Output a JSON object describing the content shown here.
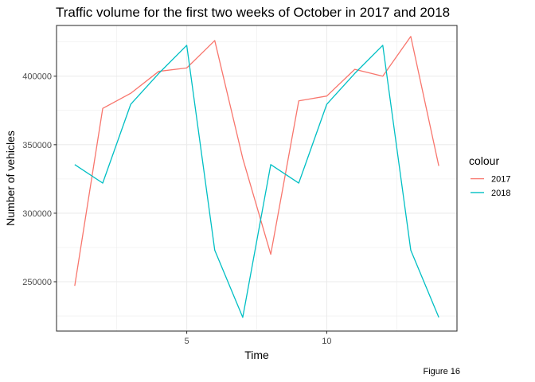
{
  "chart_data": {
    "type": "line",
    "title": "Traffic volume for the first two weeks of October in 2017 and 2018",
    "xlabel": "Time",
    "ylabel": "Number of vehicles",
    "caption": "Figure 16",
    "xlim": [
      0.35,
      14.65
    ],
    "ylim": [
      214000,
      437000
    ],
    "x_ticks": [
      5,
      10
    ],
    "x_tick_labels": [
      "5",
      "10"
    ],
    "x_minor_ticks": [
      2.5,
      7.5,
      12.5
    ],
    "y_ticks": [
      250000,
      300000,
      350000,
      400000
    ],
    "y_tick_labels": [
      "250000",
      "300000",
      "350000",
      "400000"
    ],
    "y_minor_ticks": [
      225000,
      275000,
      325000,
      375000,
      425000
    ],
    "grid": true,
    "legend": {
      "title": "colour",
      "position": "right"
    },
    "x": [
      1,
      2,
      3,
      4,
      5,
      6,
      7,
      8,
      9,
      10,
      11,
      12,
      13,
      14
    ],
    "series": [
      {
        "name": "2017",
        "color": "#F8766D",
        "values": [
          247000,
          376500,
          387500,
          403500,
          406000,
          426000,
          340000,
          270000,
          382000,
          385500,
          405000,
          400000,
          429000,
          334500
        ]
      },
      {
        "name": "2018",
        "color": "#00BFC4",
        "values": [
          335500,
          322000,
          379500,
          402000,
          422500,
          273000,
          224000,
          335500,
          322000,
          379500,
          402000,
          422500,
          273000,
          224000
        ]
      }
    ]
  }
}
